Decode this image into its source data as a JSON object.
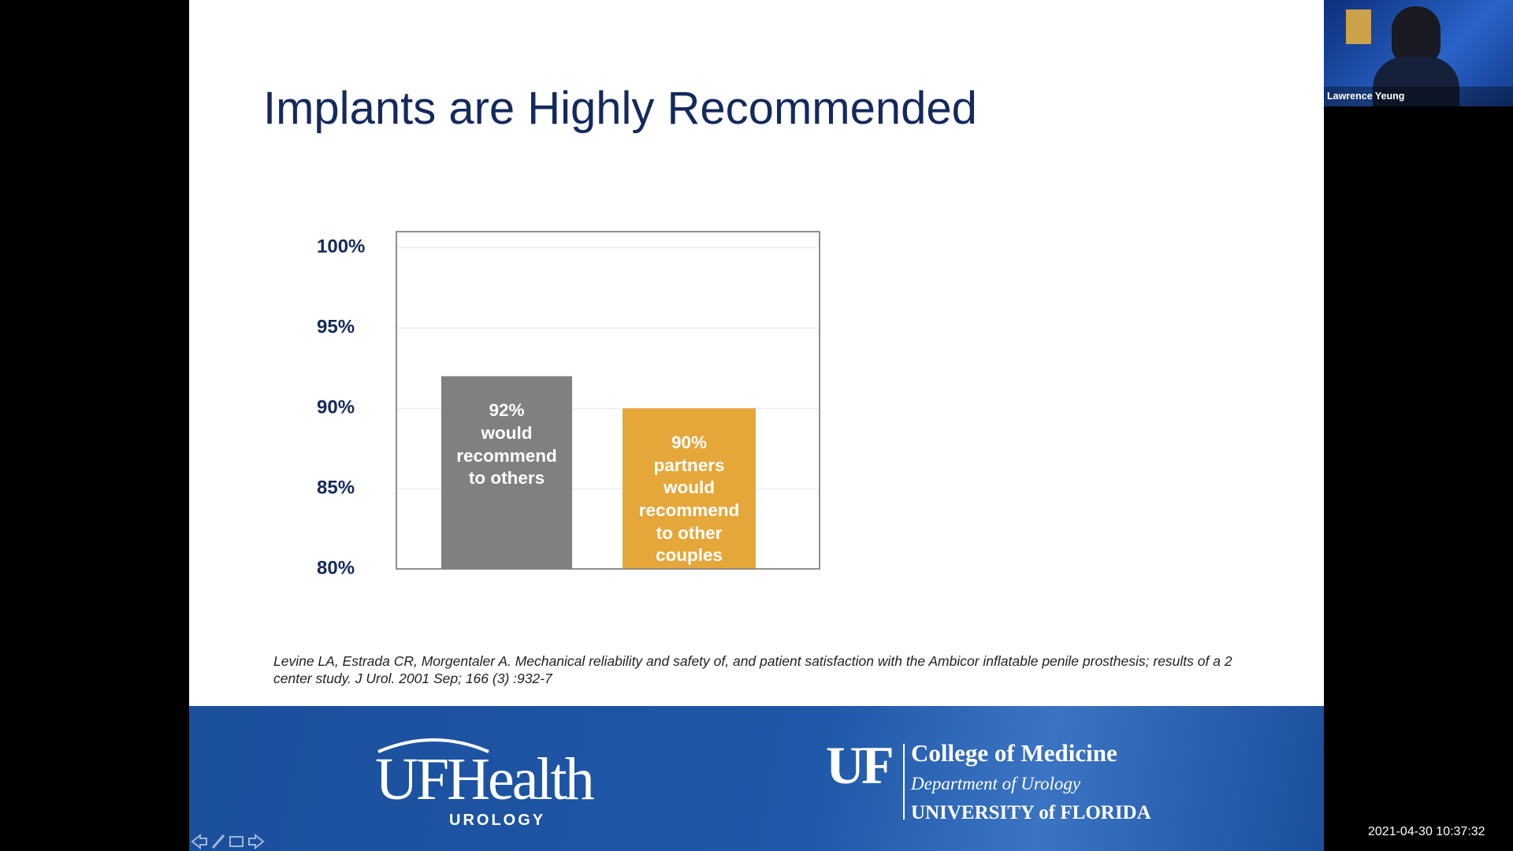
{
  "slide": {
    "title": "Implants are Highly Recommended",
    "chart_data": {
      "type": "bar",
      "values": [
        92,
        90
      ],
      "value_labels": [
        "92%\nwould\nrecommend\nto others",
        "90%\npartners\nwould\nrecommend\nto other\ncouples"
      ],
      "colors": [
        "#808080",
        "#e5a73a"
      ],
      "ylim": [
        80,
        101
      ],
      "yticks": [
        {
          "value": 80,
          "label": "80%"
        },
        {
          "value": 85,
          "label": "85%"
        },
        {
          "value": 90,
          "label": "90%"
        },
        {
          "value": 95,
          "label": "95%"
        },
        {
          "value": 100,
          "label": "100%"
        }
      ],
      "grid": true
    },
    "citation": "Levine LA, Estrada CR, Morgentaler A. Mechanical reliability and safety of, and patient satisfaction with the Ambicor inflatable penile prosthesis; results of a 2 center study. J Urol. 2001 Sep; 166 (3) :932-7",
    "footer": {
      "left_logo": "UFHealth",
      "left_sub": "UROLOGY",
      "right_mark": "UF",
      "right_line1": "College of Medicine",
      "right_line2": "Department of Urology",
      "right_line3": "UNIVERSITY of FLORIDA"
    }
  },
  "video": {
    "name": "Lawrence Yeung"
  },
  "timestamp": "2021-04-30 10:37:32"
}
